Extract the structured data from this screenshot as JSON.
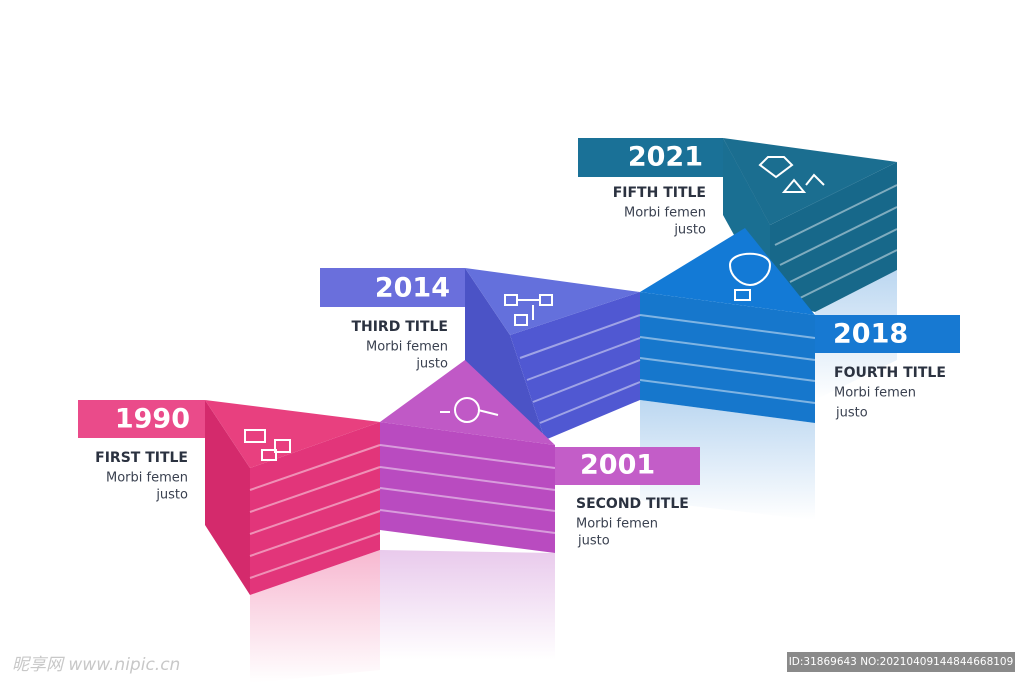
{
  "steps": [
    {
      "year": "1990",
      "title": "FIRST TITLE",
      "lines": [
        "Morbi femen",
        "justo"
      ]
    },
    {
      "year": "2001",
      "title": "SECOND TITLE",
      "lines": [
        "Morbi femen",
        "justo"
      ]
    },
    {
      "year": "2014",
      "title": "THIRD TITLE",
      "lines": [
        "Morbi femen",
        "justo"
      ]
    },
    {
      "year": "2018",
      "title": "FOURTH TITLE",
      "lines": [
        "Morbi femen",
        "justo"
      ]
    },
    {
      "year": "2021",
      "title": "FIFTH TITLE",
      "lines": [
        "Morbi femen",
        "justo"
      ]
    }
  ],
  "watermark": {
    "site": "昵享网 www.nipic.cn",
    "id": "ID:31869643 NO:20210409144844668109"
  }
}
